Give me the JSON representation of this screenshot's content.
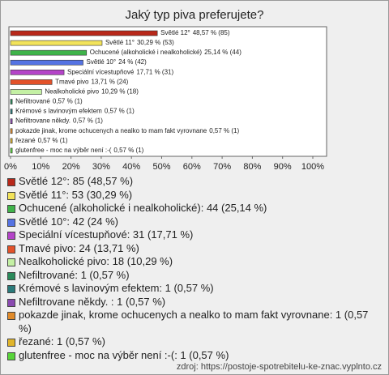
{
  "chart_data": {
    "type": "bar",
    "orientation": "horizontal",
    "title": "Jaký typ piva preferujete?",
    "categories": [
      "Světlé 12°",
      "Světlé 11°",
      "Ochucené (alkoholické i nealkoholické)",
      "Světlé 10°",
      "Speciální vícestupňové",
      "Tmavé pivo",
      "Nealkoholické pivo",
      "Nefiltrované",
      "Krémové s lavinovým efektem",
      "Nefiltrovane někdy.",
      "pokazde jinak, krome ochucenych a nealko to mam fakt vyrovnane",
      "řezané",
      "glutenfree - moc na výběr není :-("
    ],
    "values": [
      48.57,
      30.29,
      25.14,
      24,
      17.71,
      13.71,
      10.29,
      0.57,
      0.57,
      0.57,
      0.57,
      0.57,
      0.57
    ],
    "value_labels": [
      "48,57 % (85)",
      "30,29 % (53)",
      "25,14 % (44)",
      "24 % (42)",
      "17,71 % (31)",
      "13,71 % (24)",
      "10,29 % (18)",
      "0,57 % (1)",
      "0,57 % (1)",
      "0,57 % (1)",
      "0,57 % (1)",
      "0,57 % (1)",
      "0,57 % (1)"
    ],
    "colors": [
      "#b8281a",
      "#f2e35a",
      "#3fb34a",
      "#5573e3",
      "#b444c8",
      "#e3522a",
      "#c4f0a4",
      "#2a8a5a",
      "#2a7a7a",
      "#8a4ab0",
      "#e08a2a",
      "#e0b42a",
      "#58d43a"
    ],
    "legend": [
      "Světlé 12°: 85 (48,57 %)",
      "Světlé 11°: 53 (30,29 %)",
      "Ochucené (alkoholické i nealkoholické): 44 (25,14 %)",
      "Světlé 10°: 42 (24 %)",
      "Speciální vícestupňové: 31 (17,71 %)",
      "Tmavé pivo: 24 (13,71 %)",
      "Nealkoholické pivo: 18 (10,29 %)",
      "Nefiltrované: 1 (0,57 %)",
      "Krémové s lavinovým efektem: 1 (0,57 %)",
      "Nefiltrovane někdy. : 1 (0,57 %)",
      "pokazde jinak, krome ochucenych a nealko to mam fakt vyrovnane: 1 (0,57 %)",
      "řezané: 1 (0,57 %)",
      "glutenfree - moc na výběr není :-(: 1 (0,57 %)"
    ],
    "xlim": [
      0,
      100
    ],
    "xticks": [
      {
        "value": 0,
        "label": "0%"
      },
      {
        "value": 10,
        "label": "10%"
      },
      {
        "value": 20,
        "label": "20%"
      },
      {
        "value": 30,
        "label": "30%"
      },
      {
        "value": 40,
        "label": "40%"
      },
      {
        "value": 50,
        "label": "50%"
      },
      {
        "value": 60,
        "label": "60%"
      },
      {
        "value": 70,
        "label": "70%"
      },
      {
        "value": 80,
        "label": "80%"
      },
      {
        "value": 90,
        "label": "90%"
      },
      {
        "value": 100,
        "label": "100%"
      }
    ],
    "source": "zdroj: https://postoje-spotrebitelu-ke-znac.vyplnto.cz"
  }
}
